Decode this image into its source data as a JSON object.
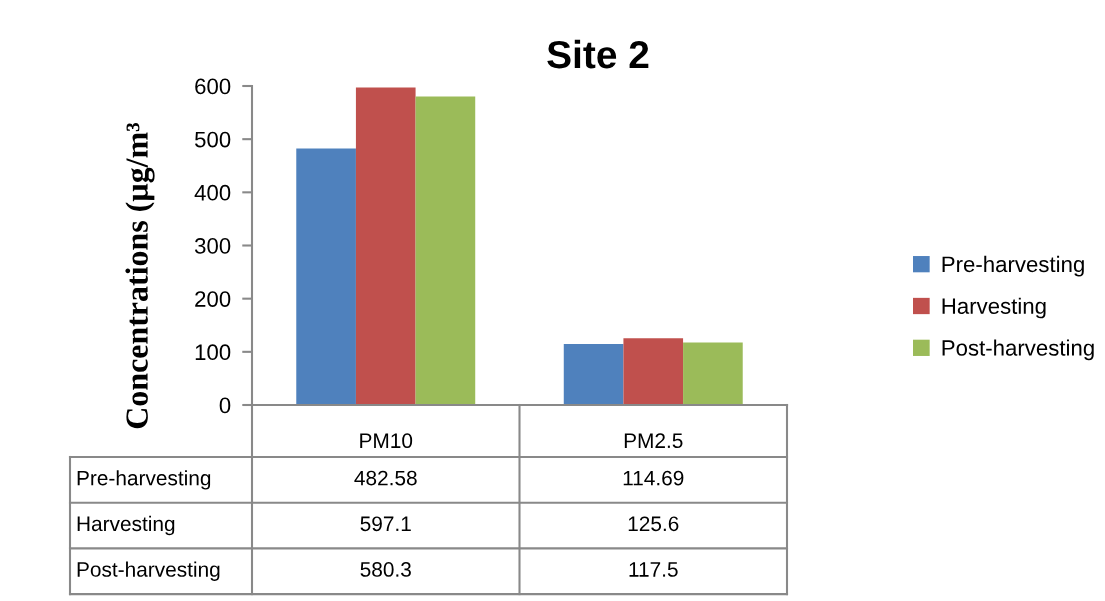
{
  "chart_data": {
    "type": "bar",
    "title": "Site 2",
    "ylabel": "Concentrations (µg/m³",
    "categories": [
      "PM10",
      "PM2.5"
    ],
    "series": [
      {
        "name": "Pre-harvesting",
        "color": "#4f81bd",
        "values": [
          482.58,
          114.69
        ]
      },
      {
        "name": "Harvesting",
        "color": "#c0504d",
        "values": [
          597.1,
          125.6
        ]
      },
      {
        "name": "Post-harvesting",
        "color": "#9bbb59",
        "values": [
          580.3,
          117.5
        ]
      }
    ],
    "ylim": [
      0,
      600
    ],
    "yticks": [
      0,
      100,
      200,
      300,
      400,
      500,
      600
    ],
    "legend": "right",
    "data_labels": true
  }
}
